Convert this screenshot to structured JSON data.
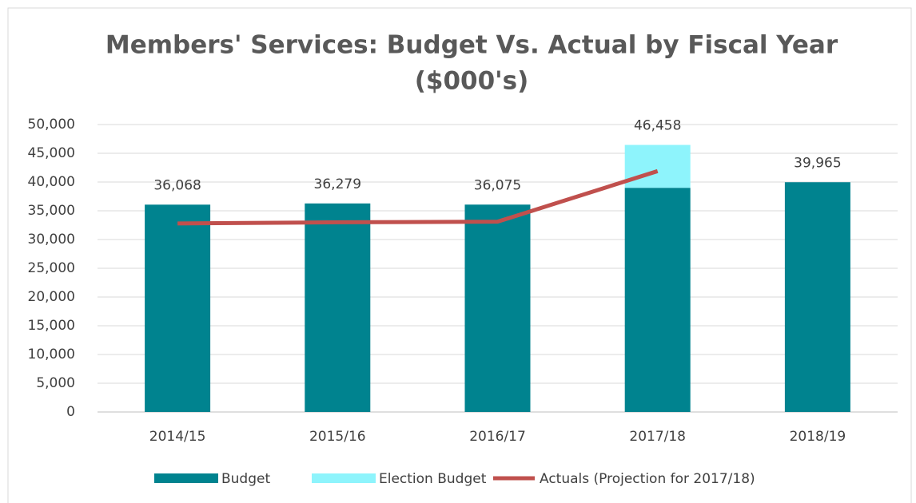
{
  "chart_data": {
    "type": "bar",
    "title": [
      "Members' Services: Budget Vs. Actual by Fiscal Year",
      "($000's)"
    ],
    "categories": [
      "2014/15",
      "2015/16",
      "2016/17",
      "2017/18",
      "2018/19"
    ],
    "stacked": true,
    "series": [
      {
        "name": "Budget",
        "type": "bar",
        "color": "#00838f",
        "values": [
          36068,
          36279,
          36075,
          39000,
          39965
        ]
      },
      {
        "name": "Election Budget",
        "type": "bar",
        "color": "#8ef4fc",
        "values": [
          0,
          0,
          0,
          7458,
          0
        ]
      },
      {
        "name": "Actuals (Projection for 2017/18)",
        "type": "line",
        "color": "#c0504d",
        "values": [
          32800,
          33000,
          33100,
          41900,
          null
        ]
      }
    ],
    "totals": [
      {
        "value": 36068,
        "label": "36,068"
      },
      {
        "value": 36279,
        "label": "36,279"
      },
      {
        "value": 36075,
        "label": "36,075"
      },
      {
        "value": 46458,
        "label": "46,458"
      },
      {
        "value": 39965,
        "label": "39,965"
      }
    ],
    "ylim": [
      0,
      50000
    ],
    "yticks": [
      0,
      {
        "value": 5000,
        "label": "5,000"
      },
      {
        "value": 10000,
        "label": "10,000"
      },
      {
        "value": 15000,
        "label": "15,000"
      },
      {
        "value": 20000,
        "label": "20,000"
      },
      {
        "value": 25000,
        "label": "25,000"
      },
      {
        "value": 30000,
        "label": "30,000"
      },
      {
        "value": 35000,
        "label": "35,000"
      },
      {
        "value": 40000,
        "label": "40,000"
      },
      {
        "value": 45000,
        "label": "45,000"
      },
      {
        "value": 50000,
        "label": "50,000"
      }
    ],
    "grid": true,
    "legend": "bottom"
  }
}
